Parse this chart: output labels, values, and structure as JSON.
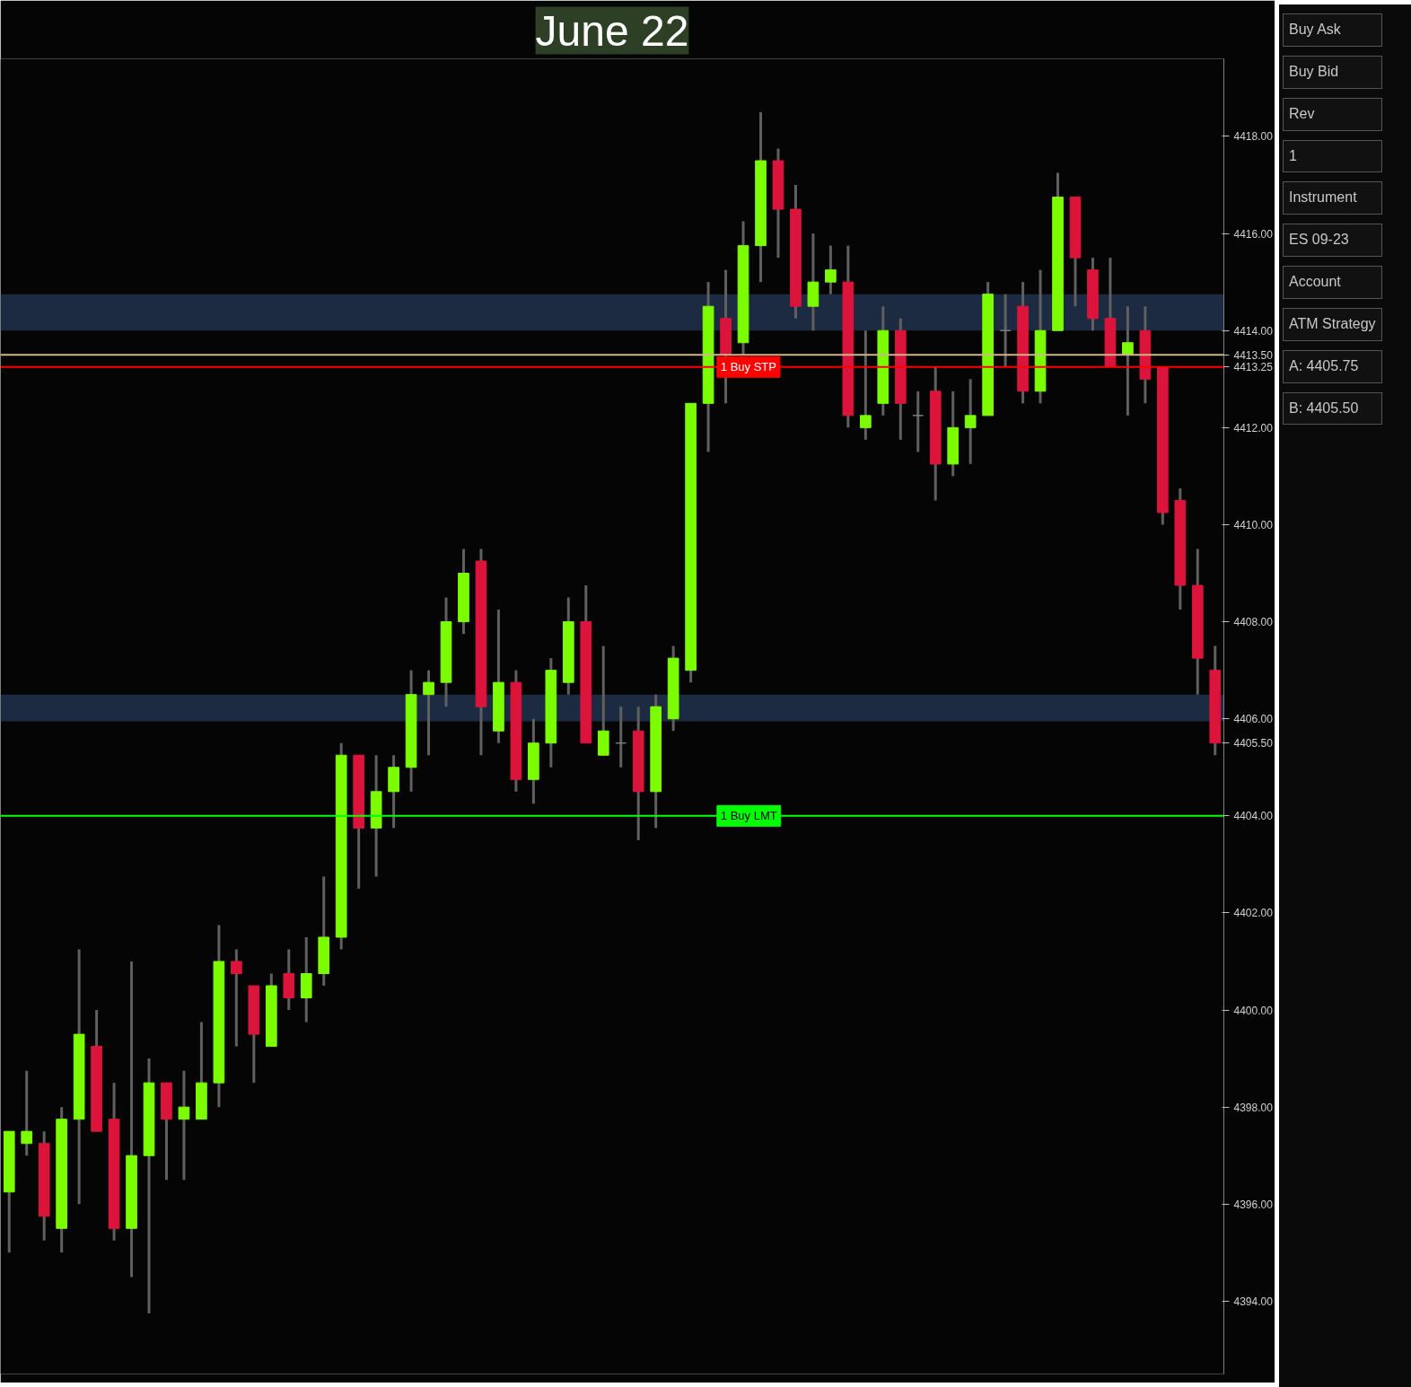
{
  "chart_data": {
    "type": "candlestick",
    "title": "June 22",
    "categories": [
      null,
      null,
      null,
      null,
      null,
      null,
      null,
      null,
      null,
      null,
      null,
      null,
      null,
      null,
      null,
      null,
      null,
      null,
      null,
      null,
      null,
      null,
      null,
      null,
      null,
      null,
      null,
      null,
      null,
      null,
      null,
      null,
      null,
      null,
      null,
      null,
      null,
      null,
      null,
      null,
      null,
      null,
      null,
      null,
      null,
      null,
      null,
      null,
      null,
      null,
      null,
      null,
      null,
      null,
      null,
      null,
      null,
      null,
      null,
      null,
      null,
      null,
      null,
      null,
      null,
      null,
      null,
      null,
      null,
      null
    ],
    "ohlc": [
      [
        4396.25,
        4397.5,
        4395,
        4397.5
      ],
      [
        4397.25,
        4398.75,
        4397,
        4397.5
      ],
      [
        4397.25,
        4397.5,
        4395.25,
        4395.75
      ],
      [
        4395.5,
        4398,
        4395,
        4397.75
      ],
      [
        4397.75,
        4401.25,
        4396,
        4399.5
      ],
      [
        4399.25,
        4400,
        4397.5,
        4397.5
      ],
      [
        4397.75,
        4398.5,
        4395.25,
        4395.5
      ],
      [
        4395.5,
        4401,
        4394.5,
        4397
      ],
      [
        4397,
        4399,
        4393.75,
        4398.5
      ],
      [
        4398.5,
        4398.5,
        4396.5,
        4397.75
      ],
      [
        4397.75,
        4398.75,
        4396.5,
        4398
      ],
      [
        4397.75,
        4399.75,
        4397.75,
        4398.5
      ],
      [
        4398.5,
        4401.75,
        4398,
        4401
      ],
      [
        4401,
        4401.25,
        4399.25,
        4400.75
      ],
      [
        4400.5,
        4400.5,
        4398.5,
        4399.5
      ],
      [
        4399.25,
        4400.75,
        4399.25,
        4400.5
      ],
      [
        4400.75,
        4401.25,
        4400,
        4400.25
      ],
      [
        4400.25,
        4401.5,
        4399.75,
        4400.75
      ],
      [
        4400.75,
        4402.75,
        4400.5,
        4401.5
      ],
      [
        4401.5,
        4405.5,
        4401.25,
        4405.25
      ],
      [
        4405.25,
        4405.25,
        4402.5,
        4403.75
      ],
      [
        4403.75,
        4405.25,
        4402.75,
        4404.5
      ],
      [
        4404.5,
        4405.25,
        4403.75,
        4405
      ],
      [
        4405,
        4407,
        4404.5,
        4406.5
      ],
      [
        4406.5,
        4407,
        4405.25,
        4406.75
      ],
      [
        4406.75,
        4408.5,
        4406.25,
        4408
      ],
      [
        4408,
        4409.5,
        4407.75,
        4409
      ],
      [
        4409.25,
        4409.5,
        4405.25,
        4406.25
      ],
      [
        4405.75,
        4408.25,
        4405.5,
        4406.75
      ],
      [
        4406.75,
        4407,
        4404.5,
        4404.75
      ],
      [
        4404.75,
        4406,
        4404.25,
        4405.5
      ],
      [
        4405.5,
        4407.25,
        4405,
        4407
      ],
      [
        4406.75,
        4408.5,
        4406.5,
        4408
      ],
      [
        4408,
        4408.75,
        4405.5,
        4405.5
      ],
      [
        4405.25,
        4407.5,
        4405.25,
        4405.75
      ],
      [
        4405.5,
        4406.25,
        4405,
        4405.5
      ],
      [
        4405.75,
        4406.25,
        4403.5,
        4404.5
      ],
      [
        4404.5,
        4406.5,
        4403.75,
        4406.25
      ],
      [
        4406,
        4407.5,
        4405.75,
        4407.25
      ],
      [
        4407,
        4412.5,
        4406.75,
        4412.5
      ],
      [
        4412.5,
        4415,
        4411.5,
        4414.5
      ],
      [
        4414.25,
        4415.25,
        4412.5,
        4413.5
      ],
      [
        4413.75,
        4416.25,
        4413.5,
        4415.75
      ],
      [
        4415.75,
        4418.5,
        4415,
        4417.5
      ],
      [
        4417.5,
        4417.75,
        4415.5,
        4416.5
      ],
      [
        4416.5,
        4417,
        4414.25,
        4414.5
      ],
      [
        4414.5,
        4416,
        4414,
        4415
      ],
      [
        4415,
        4415.75,
        4414.75,
        4415.25
      ],
      [
        4415,
        4415.75,
        4412,
        4412.25
      ],
      [
        4412,
        4414,
        4411.75,
        4412.25
      ],
      [
        4412.5,
        4414.5,
        4412.25,
        4414
      ],
      [
        4414,
        4414.25,
        4411.75,
        4412.5
      ],
      [
        4412.25,
        4412.75,
        4411.5,
        4412.25
      ],
      [
        4412.75,
        4413.25,
        4410.5,
        4411.25
      ],
      [
        4411.25,
        4412.75,
        4411,
        4412
      ],
      [
        4412,
        4413,
        4411.25,
        4412.25
      ],
      [
        4412.25,
        4415,
        4412.25,
        4414.75
      ],
      [
        4414,
        4414.75,
        4413.25,
        4414
      ],
      [
        4414.5,
        4415,
        4412.5,
        4412.75
      ],
      [
        4412.75,
        4415.25,
        4412.5,
        4414
      ],
      [
        4414,
        4417.25,
        4414,
        4416.75
      ],
      [
        4416.75,
        4416.75,
        4414.5,
        4415.5
      ],
      [
        4415.25,
        4415.5,
        4414,
        4414.25
      ],
      [
        4414.25,
        4415.5,
        4413.25,
        4413.25
      ],
      [
        4413.5,
        4414.5,
        4412.25,
        4413.75
      ],
      [
        4414,
        4414.5,
        4412.5,
        4413
      ],
      [
        4413.25,
        4413.25,
        4410,
        4410.25
      ],
      [
        4410.5,
        4410.75,
        4408.25,
        4408.75
      ],
      [
        4408.75,
        4409.5,
        4406.5,
        4407.25
      ],
      [
        4407,
        4407.5,
        4405.25,
        4405.5
      ]
    ],
    "colors": [
      "#7cfc00",
      "#7cfc00",
      "#dc143c",
      "#7cfc00",
      "#7cfc00",
      "#dc143c",
      "#dc143c",
      "#7cfc00",
      "#7cfc00",
      "#dc143c",
      "#7cfc00",
      "#7cfc00",
      "#7cfc00",
      "#dc143c",
      "#dc143c",
      "#7cfc00",
      "#dc143c",
      "#7cfc00",
      "#7cfc00",
      "#7cfc00",
      "#dc143c",
      "#7cfc00",
      "#7cfc00",
      "#7cfc00",
      "#7cfc00",
      "#7cfc00",
      "#7cfc00",
      "#dc143c",
      "#7cfc00",
      "#dc143c",
      "#7cfc00",
      "#7cfc00",
      "#7cfc00",
      "#dc143c",
      "#7cfc00",
      "#808080",
      "#dc143c",
      "#7cfc00",
      "#7cfc00",
      "#7cfc00",
      "#7cfc00",
      "#dc143c",
      "#7cfc00",
      "#7cfc00",
      "#dc143c",
      "#dc143c",
      "#7cfc00",
      "#7cfc00",
      "#dc143c",
      "#7cfc00",
      "#7cfc00",
      "#dc143c",
      "#808080",
      "#dc143c",
      "#7cfc00",
      "#7cfc00",
      "#7cfc00",
      "#808080",
      "#dc143c",
      "#7cfc00",
      "#7cfc00",
      "#dc143c",
      "#dc143c",
      "#dc143c",
      "#7cfc00",
      "#dc143c",
      "#dc143c",
      "#dc143c",
      "#dc143c",
      "#dc143c"
    ],
    "ylim": [
      4392.5,
      4419.6
    ],
    "yticks": [
      {
        "value": 4394,
        "label": "4394.00"
      },
      {
        "value": 4396,
        "label": "4396.00"
      },
      {
        "value": 4398,
        "label": "4398.00"
      },
      {
        "value": 4400,
        "label": "4400.00"
      },
      {
        "value": 4402,
        "label": "4402.00"
      },
      {
        "value": 4404,
        "label": "4404.00"
      },
      {
        "value": 4405.5,
        "label": "4405.50"
      },
      {
        "value": 4406,
        "label": "4406.00"
      },
      {
        "value": 4408,
        "label": "4408.00"
      },
      {
        "value": 4410,
        "label": "4410.00"
      },
      {
        "value": 4412,
        "label": "4412.00"
      },
      {
        "value": 4413.25,
        "label": "4413.25"
      },
      {
        "value": 4413.5,
        "label": "4413.50"
      },
      {
        "value": 4414,
        "label": "4414.00"
      },
      {
        "value": 4416,
        "label": "4416.00"
      },
      {
        "value": 4418,
        "label": "4418.00"
      }
    ],
    "tick_labels": "y",
    "grid": false,
    "ref_lines": [
      {
        "axis": "y",
        "value": 4413.5,
        "color": "#d2b48c"
      },
      {
        "axis": "y",
        "value": 4413.25,
        "label": "1 Buy STP",
        "color": "#ff0000"
      },
      {
        "axis": "y",
        "value": 4404,
        "label": "1 Buy LMT",
        "color": "#00ff00"
      }
    ],
    "bands": [
      {
        "axis": "y",
        "from": 4414,
        "to": 4414.75,
        "color": "#3a5a8c"
      },
      {
        "axis": "y",
        "from": 4405.95,
        "to": 4406.5,
        "color": "#3a5a8c"
      }
    ],
    "annotations": [
      "Buy Ask",
      "Buy Bid",
      "Rev",
      "1",
      "Instrument",
      "ES 09-23",
      "Account",
      "ATM Strategy",
      "A: 4405.75",
      "B: 4405.50"
    ]
  }
}
